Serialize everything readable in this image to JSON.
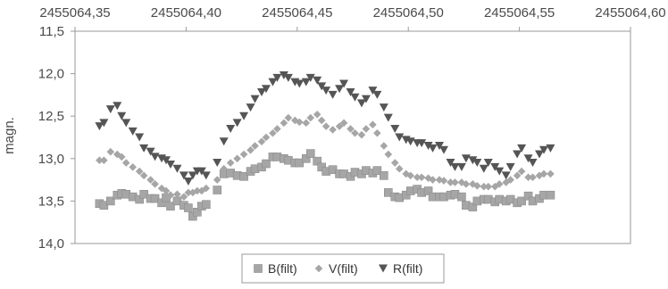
{
  "chart_data": {
    "type": "scatter",
    "ylabel": "magn.",
    "x_axis_position": "top",
    "y_axis_inverted": true,
    "xlim": [
      2455064.35,
      2455064.6
    ],
    "ylim": [
      11.5,
      14.0
    ],
    "x_ticks": [
      "2455064,35",
      "2455064,40",
      "2455064,45",
      "2455064,50",
      "2455064,55",
      "2455064,60"
    ],
    "y_ticks": [
      "11,5",
      "12,0",
      "12,5",
      "13,0",
      "13,5",
      "14,0"
    ],
    "grid": false,
    "legend": "bottom",
    "series": [
      {
        "name": "B(filt)",
        "marker": "square",
        "color": "#a6a6a6",
        "x": [
          2455064.361,
          2455064.363,
          2455064.366,
          2455064.369,
          2455064.371,
          2455064.373,
          2455064.376,
          2455064.379,
          2455064.381,
          2455064.384,
          2455064.386,
          2455064.389,
          2455064.391,
          2455064.393,
          2455064.396,
          2455064.399,
          2455064.401,
          2455064.403,
          2455064.405,
          2455064.407,
          2455064.409,
          2455064.414,
          2455064.417,
          2455064.42,
          2455064.423,
          2455064.426,
          2455064.429,
          2455064.431,
          2455064.434,
          2455064.436,
          2455064.439,
          2455064.441,
          2455064.444,
          2455064.446,
          2455064.449,
          2455064.451,
          2455064.454,
          2455064.456,
          2455064.459,
          2455064.461,
          2455064.463,
          2455064.466,
          2455064.469,
          2455064.471,
          2455064.474,
          2455064.476,
          2455064.479,
          2455064.481,
          2455064.484,
          2455064.486,
          2455064.489,
          2455064.491,
          2455064.494,
          2455064.496,
          2455064.499,
          2455064.501,
          2455064.504,
          2455064.506,
          2455064.509,
          2455064.511,
          2455064.514,
          2455064.516,
          2455064.519,
          2455064.521,
          2455064.524,
          2455064.526,
          2455064.529,
          2455064.531,
          2455064.534,
          2455064.536,
          2455064.539,
          2455064.541,
          2455064.544,
          2455064.546,
          2455064.549,
          2455064.551,
          2455064.554,
          2455064.556,
          2455064.559,
          2455064.561,
          2455064.564
        ],
        "y": [
          13.53,
          13.55,
          13.5,
          13.43,
          13.41,
          13.42,
          13.45,
          13.48,
          13.42,
          13.47,
          13.47,
          13.52,
          13.46,
          13.56,
          13.5,
          13.55,
          13.58,
          13.68,
          13.63,
          13.56,
          13.54,
          13.37,
          13.18,
          13.17,
          13.2,
          13.21,
          13.15,
          13.12,
          13.1,
          13.06,
          12.98,
          12.98,
          13.0,
          13.02,
          13.05,
          13.05,
          13.0,
          12.94,
          13.03,
          13.1,
          13.15,
          13.13,
          13.18,
          13.18,
          13.21,
          13.16,
          13.18,
          13.14,
          13.17,
          13.14,
          13.2,
          13.4,
          13.45,
          13.46,
          13.43,
          13.38,
          13.36,
          13.4,
          13.38,
          13.45,
          13.45,
          13.45,
          13.43,
          13.42,
          13.45,
          13.55,
          13.57,
          13.5,
          13.48,
          13.48,
          13.51,
          13.48,
          13.5,
          13.48,
          13.52,
          13.5,
          13.44,
          13.5,
          13.47,
          13.43,
          13.43
        ]
      },
      {
        "name": "V(filt)",
        "marker": "diamond",
        "color": "#a6a6a6",
        "x": [
          2455064.361,
          2455064.363,
          2455064.366,
          2455064.369,
          2455064.371,
          2455064.373,
          2455064.376,
          2455064.379,
          2455064.381,
          2455064.384,
          2455064.386,
          2455064.389,
          2455064.391,
          2455064.393,
          2455064.396,
          2455064.399,
          2455064.401,
          2455064.403,
          2455064.405,
          2455064.407,
          2455064.409,
          2455064.414,
          2455064.417,
          2455064.42,
          2455064.423,
          2455064.426,
          2455064.429,
          2455064.431,
          2455064.434,
          2455064.436,
          2455064.439,
          2455064.441,
          2455064.444,
          2455064.446,
          2455064.449,
          2455064.451,
          2455064.454,
          2455064.456,
          2455064.459,
          2455064.461,
          2455064.463,
          2455064.466,
          2455064.469,
          2455064.471,
          2455064.474,
          2455064.476,
          2455064.479,
          2455064.481,
          2455064.484,
          2455064.486,
          2455064.489,
          2455064.491,
          2455064.494,
          2455064.496,
          2455064.499,
          2455064.501,
          2455064.504,
          2455064.506,
          2455064.509,
          2455064.511,
          2455064.514,
          2455064.516,
          2455064.519,
          2455064.521,
          2455064.524,
          2455064.526,
          2455064.529,
          2455064.531,
          2455064.534,
          2455064.536,
          2455064.539,
          2455064.541,
          2455064.544,
          2455064.546,
          2455064.549,
          2455064.551,
          2455064.554,
          2455064.556,
          2455064.559,
          2455064.561,
          2455064.564
        ],
        "y": [
          13.02,
          13.02,
          12.92,
          12.95,
          12.98,
          13.05,
          13.1,
          13.15,
          13.2,
          13.25,
          13.3,
          13.35,
          13.38,
          13.43,
          13.42,
          13.45,
          13.4,
          13.4,
          13.38,
          13.38,
          13.35,
          13.25,
          13.12,
          13.05,
          13.0,
          12.95,
          12.9,
          12.85,
          12.8,
          12.75,
          12.7,
          12.65,
          12.58,
          12.52,
          12.55,
          12.57,
          12.58,
          12.52,
          12.48,
          12.55,
          12.62,
          12.66,
          12.62,
          12.58,
          12.65,
          12.7,
          12.72,
          12.65,
          12.6,
          12.7,
          12.85,
          12.95,
          13.05,
          13.12,
          13.18,
          13.2,
          13.22,
          13.22,
          13.23,
          13.25,
          13.25,
          13.26,
          13.28,
          13.28,
          13.28,
          13.3,
          13.3,
          13.32,
          13.33,
          13.33,
          13.33,
          13.3,
          13.28,
          13.25,
          13.2,
          13.15,
          13.22,
          13.22,
          13.2,
          13.18,
          13.18
        ]
      },
      {
        "name": "R(filt)",
        "marker": "triangle-down",
        "color": "#555555",
        "x": [
          2455064.361,
          2455064.363,
          2455064.366,
          2455064.369,
          2455064.371,
          2455064.373,
          2455064.376,
          2455064.379,
          2455064.381,
          2455064.384,
          2455064.386,
          2455064.389,
          2455064.391,
          2455064.393,
          2455064.396,
          2455064.399,
          2455064.401,
          2455064.403,
          2455064.405,
          2455064.407,
          2455064.409,
          2455064.414,
          2455064.417,
          2455064.42,
          2455064.423,
          2455064.426,
          2455064.429,
          2455064.431,
          2455064.434,
          2455064.436,
          2455064.439,
          2455064.441,
          2455064.444,
          2455064.446,
          2455064.449,
          2455064.451,
          2455064.454,
          2455064.456,
          2455064.459,
          2455064.461,
          2455064.463,
          2455064.466,
          2455064.469,
          2455064.471,
          2455064.474,
          2455064.476,
          2455064.479,
          2455064.481,
          2455064.484,
          2455064.486,
          2455064.489,
          2455064.491,
          2455064.494,
          2455064.496,
          2455064.499,
          2455064.501,
          2455064.504,
          2455064.506,
          2455064.509,
          2455064.511,
          2455064.514,
          2455064.516,
          2455064.519,
          2455064.521,
          2455064.524,
          2455064.526,
          2455064.529,
          2455064.531,
          2455064.534,
          2455064.536,
          2455064.539,
          2455064.541,
          2455064.544,
          2455064.546,
          2455064.549,
          2455064.551,
          2455064.554,
          2455064.556,
          2455064.559,
          2455064.561,
          2455064.564
        ],
        "y": [
          12.62,
          12.58,
          12.42,
          12.38,
          12.5,
          12.58,
          12.68,
          12.75,
          12.88,
          12.92,
          12.98,
          13.0,
          13.02,
          13.07,
          13.12,
          13.2,
          13.27,
          13.2,
          13.15,
          13.15,
          13.2,
          13.05,
          12.8,
          12.65,
          12.58,
          12.5,
          12.4,
          12.3,
          12.22,
          12.18,
          12.1,
          12.05,
          12.02,
          12.05,
          12.1,
          12.12,
          12.1,
          12.05,
          12.08,
          12.15,
          12.2,
          12.25,
          12.18,
          12.12,
          12.22,
          12.28,
          12.35,
          12.3,
          12.2,
          12.25,
          12.4,
          12.52,
          12.65,
          12.75,
          12.78,
          12.8,
          12.82,
          12.82,
          12.85,
          12.88,
          12.85,
          12.9,
          13.05,
          13.1,
          13.1,
          13.0,
          13.02,
          13.05,
          13.12,
          13.05,
          13.1,
          13.15,
          13.2,
          13.1,
          12.95,
          12.88,
          13.0,
          13.05,
          12.95,
          12.9,
          12.88
        ]
      }
    ]
  }
}
